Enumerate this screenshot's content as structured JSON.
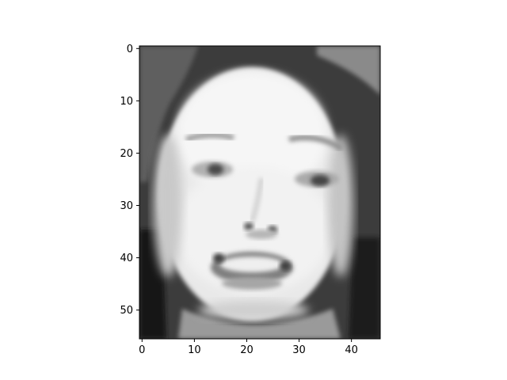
{
  "chart_data": {
    "type": "heatmap",
    "colormap": "gray",
    "image_size": {
      "columns": 46,
      "rows": 56
    },
    "xlim": [
      -0.5,
      45.5
    ],
    "ylim": [
      55.5,
      -0.5
    ],
    "x_ticks": [
      0,
      10,
      20,
      30,
      40
    ],
    "x_tick_labels": [
      "0",
      "10",
      "20",
      "30",
      "40"
    ],
    "y_ticks": [
      0,
      10,
      20,
      30,
      40,
      50
    ],
    "y_tick_labels": [
      "0",
      "10",
      "20",
      "30",
      "40",
      "50"
    ],
    "grid": false,
    "title": "",
    "xlabel": "",
    "ylabel": ""
  },
  "image_content": "grayscale face: dark hair on top and sides, bright face region, eyes near row 24, nose near row 35, open mouth near row 41"
}
